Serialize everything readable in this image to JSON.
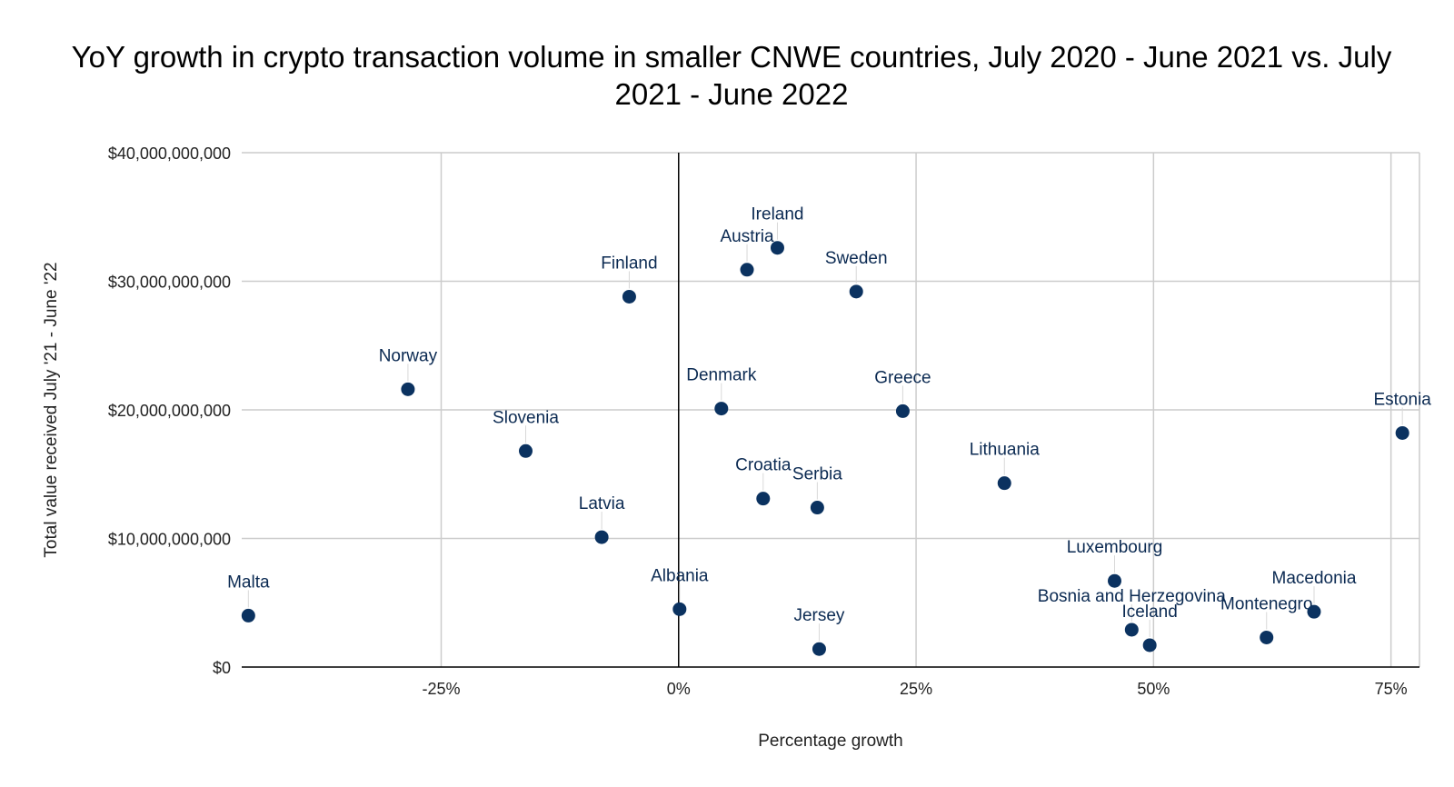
{
  "chart_data": {
    "type": "scatter",
    "title": "YoY growth in crypto transaction volume in smaller CNWE countries, July 2020 - June 2021 vs. July 2021 - June 2022",
    "xlabel": "Percentage growth",
    "ylabel": "Total value received July '21 - June '22",
    "xlim": [
      -46,
      78
    ],
    "ylim": [
      0,
      40000000000
    ],
    "x_ticks": [
      {
        "value": -25,
        "label": "-25%"
      },
      {
        "value": 0,
        "label": "0%"
      },
      {
        "value": 25,
        "label": "25%"
      },
      {
        "value": 50,
        "label": "50%"
      },
      {
        "value": 75,
        "label": "75%"
      }
    ],
    "y_ticks": [
      {
        "value": 0,
        "label": "$0"
      },
      {
        "value": 10000000000,
        "label": "$10,000,000,000"
      },
      {
        "value": 20000000000,
        "label": "$20,000,000,000"
      },
      {
        "value": 30000000000,
        "label": "$30,000,000,000"
      },
      {
        "value": 40000000000,
        "label": "$40,000,000,000"
      }
    ],
    "grid": true,
    "legend": "none",
    "colors": {
      "point": "#0b3260",
      "label": "#0b2a52",
      "grid": "#cccccc",
      "zero_line": "#000000"
    },
    "points": [
      {
        "label": "Malta",
        "x": -45.3,
        "y": 4000000000
      },
      {
        "label": "Norway",
        "x": -28.5,
        "y": 21600000000
      },
      {
        "label": "Slovenia",
        "x": -16.1,
        "y": 16800000000
      },
      {
        "label": "Latvia",
        "x": -8.1,
        "y": 10100000000
      },
      {
        "label": "Finland",
        "x": -5.2,
        "y": 28800000000
      },
      {
        "label": "Albania",
        "x": 0.1,
        "y": 4500000000
      },
      {
        "label": "Denmark",
        "x": 4.5,
        "y": 20100000000
      },
      {
        "label": "Austria",
        "x": 7.2,
        "y": 30900000000
      },
      {
        "label": "Croatia",
        "x": 8.9,
        "y": 13100000000
      },
      {
        "label": "Ireland",
        "x": 10.4,
        "y": 32600000000
      },
      {
        "label": "Serbia",
        "x": 14.6,
        "y": 12400000000
      },
      {
        "label": "Jersey",
        "x": 14.8,
        "y": 1400000000
      },
      {
        "label": "Sweden",
        "x": 18.7,
        "y": 29200000000
      },
      {
        "label": "Greece",
        "x": 23.6,
        "y": 19900000000
      },
      {
        "label": "Lithuania",
        "x": 34.3,
        "y": 14300000000
      },
      {
        "label": "Luxembourg",
        "x": 45.9,
        "y": 6700000000
      },
      {
        "label": "Bosnia and Herzegovina",
        "x": 47.7,
        "y": 2900000000
      },
      {
        "label": "Iceland",
        "x": 49.6,
        "y": 1700000000
      },
      {
        "label": "Montenegro",
        "x": 61.9,
        "y": 2300000000
      },
      {
        "label": "Macedonia",
        "x": 66.9,
        "y": 4300000000
      },
      {
        "label": "Estonia",
        "x": 76.2,
        "y": 18200000000
      }
    ]
  }
}
